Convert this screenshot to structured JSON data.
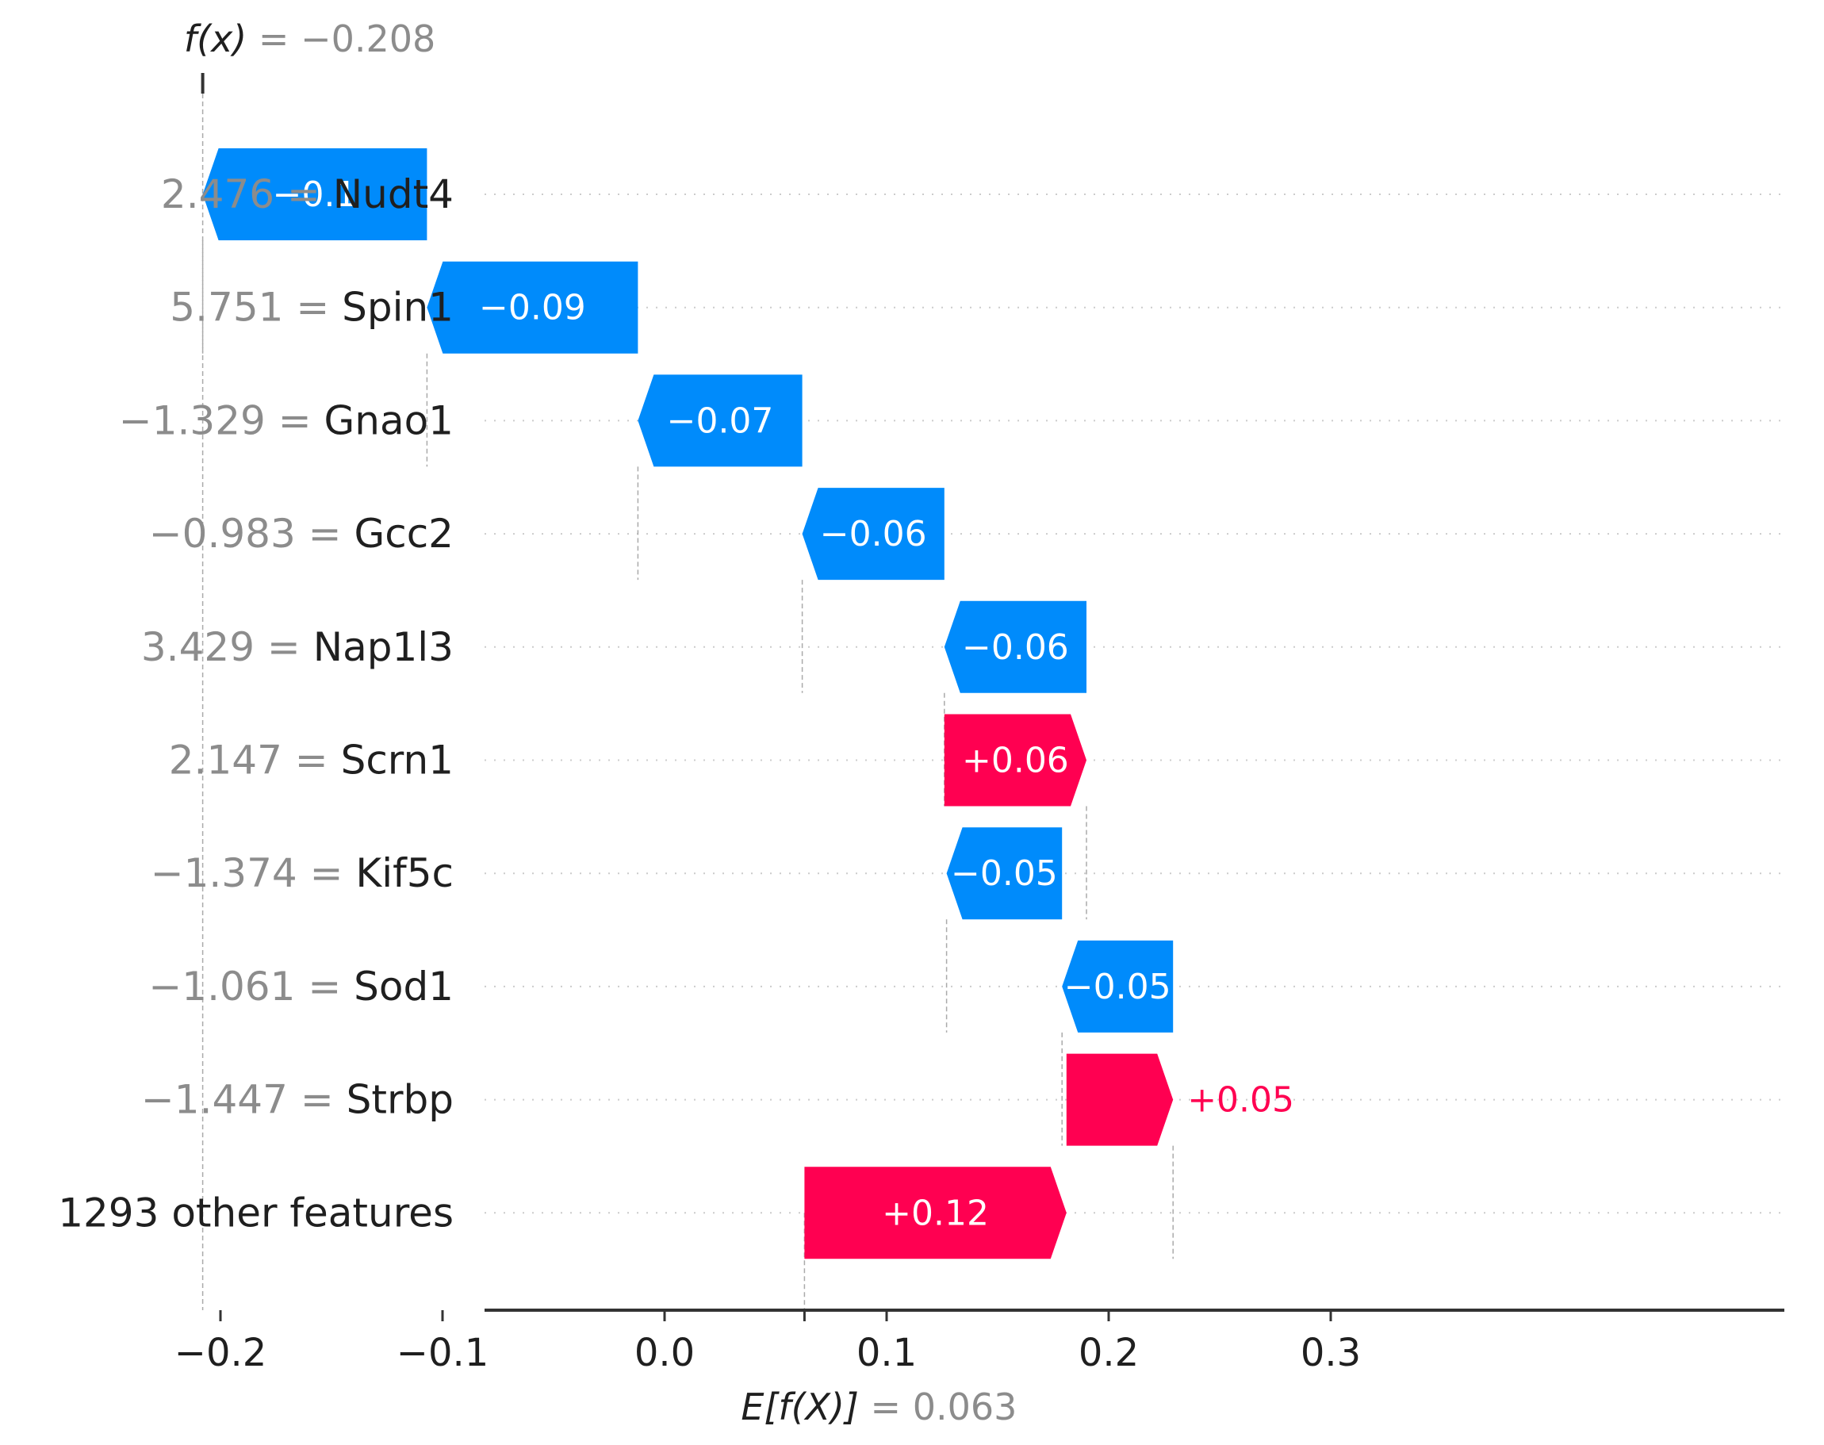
{
  "chart_data": {
    "type": "waterfall",
    "fx_label": "f(x)",
    "fx_equals": " = −0.208",
    "fx_value": -0.208,
    "base_label": "E[f(X)]",
    "base_equals": " = 0.063",
    "base_value": 0.063,
    "xlim": [
      -0.276,
      0.31
    ],
    "xticks": [
      {
        "value": -0.2,
        "label": "−0.2"
      },
      {
        "value": -0.1,
        "label": "−0.1"
      },
      {
        "value": 0.0,
        "label": "0.0"
      },
      {
        "value": 0.1,
        "label": "0.1"
      },
      {
        "value": 0.2,
        "label": "0.2"
      },
      {
        "value": 0.3,
        "label": "0.3"
      }
    ],
    "rows": [
      {
        "feature_value": "2.476",
        "feature": "Nudt4",
        "shap": -0.1,
        "start": -0.107,
        "end": -0.208,
        "label": "−0.1",
        "label_inside": true
      },
      {
        "feature_value": "5.751",
        "feature": "Spin1",
        "shap": -0.09,
        "start": -0.012,
        "end": -0.107,
        "label": "−0.09",
        "label_inside": true
      },
      {
        "feature_value": "−1.329",
        "feature": "Gnao1",
        "shap": -0.07,
        "start": 0.062,
        "end": -0.012,
        "label": "−0.07",
        "label_inside": true
      },
      {
        "feature_value": "−0.983",
        "feature": "Gcc2",
        "shap": -0.06,
        "start": 0.126,
        "end": 0.062,
        "label": "−0.06",
        "label_inside": true
      },
      {
        "feature_value": "3.429",
        "feature": "Nap1l3",
        "shap": -0.06,
        "start": 0.19,
        "end": 0.126,
        "label": "−0.06",
        "label_inside": true
      },
      {
        "feature_value": "2.147",
        "feature": "Scrn1",
        "shap": 0.06,
        "start": 0.126,
        "end": 0.19,
        "label": "+0.06",
        "label_inside": true
      },
      {
        "feature_value": "−1.374",
        "feature": "Kif5c",
        "shap": -0.05,
        "start": 0.179,
        "end": 0.127,
        "label": "−0.05",
        "label_inside": true
      },
      {
        "feature_value": "−1.061",
        "feature": "Sod1",
        "shap": -0.05,
        "start": 0.229,
        "end": 0.179,
        "label": "−0.05",
        "label_inside": true
      },
      {
        "feature_value": "−1.447",
        "feature": "Strbp",
        "shap": 0.05,
        "start": 0.181,
        "end": 0.229,
        "label": "+0.05",
        "label_inside": false
      },
      {
        "feature_value": "",
        "feature": "1293 other features",
        "shap": 0.12,
        "start": 0.063,
        "end": 0.181,
        "label": "+0.12",
        "label_inside": true
      }
    ],
    "colors": {
      "positive": "#ff0051",
      "negative": "#008bfb",
      "text": "#1f1f1f",
      "muted": "#8c8c8c",
      "grid": "#cccccc"
    }
  }
}
